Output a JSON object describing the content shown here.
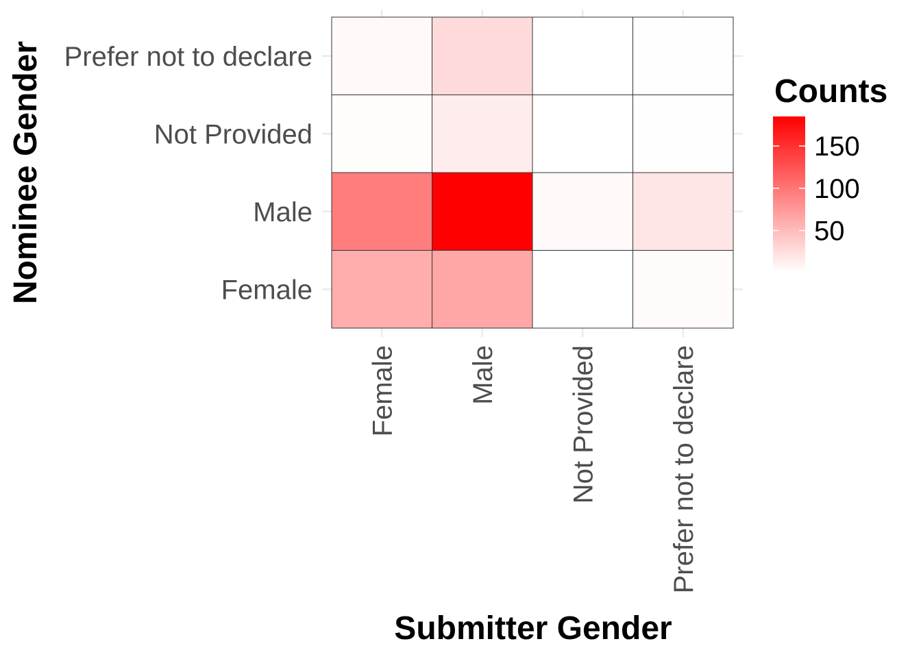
{
  "chart_data": {
    "type": "heatmap",
    "title": "",
    "xlabel": "Submitter Gender",
    "ylabel": "Nominee Gender",
    "x_categories": [
      "Female",
      "Male",
      "Not Provided",
      "Prefer not to declare"
    ],
    "y_categories": [
      "Female",
      "Male",
      "Not Provided",
      "Prefer not to declare"
    ],
    "values": [
      [
        60,
        65,
        1,
        4
      ],
      [
        95,
        185,
        5,
        20
      ],
      [
        3,
        15,
        1,
        2
      ],
      [
        5,
        28,
        1,
        2
      ]
    ],
    "legend": {
      "title": "Counts",
      "ticks": [
        50,
        100,
        150
      ],
      "range": [
        1,
        185
      ],
      "low_color": "#ffffff",
      "high_color": "#ff0000",
      "position": "right"
    },
    "grid": true
  }
}
